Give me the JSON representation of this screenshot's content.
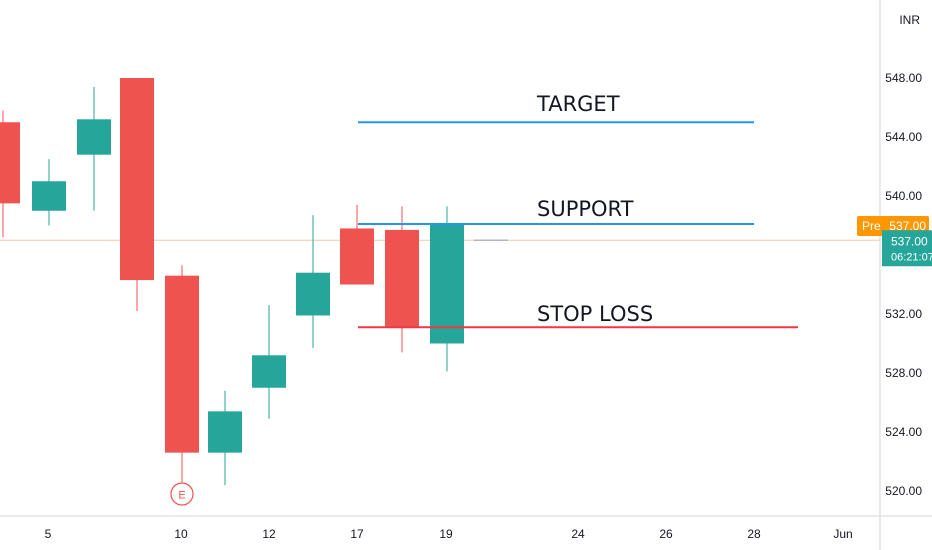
{
  "currency_label": "INR",
  "chart_data": {
    "type": "candlestick",
    "y_ticks": [
      "548.00",
      "544.00",
      "540.00",
      "532.00",
      "528.00",
      "524.00",
      "520.00"
    ],
    "x_ticks": [
      "5",
      "10",
      "12",
      "17",
      "19",
      "24",
      "26",
      "28",
      "Jun"
    ],
    "ylim": [
      518.5,
      550.5
    ],
    "candles": [
      {
        "open": 545.0,
        "close": 539.5,
        "high": 545.8,
        "low": 537.2,
        "color": "down"
      },
      {
        "open": 539.0,
        "close": 541.0,
        "high": 542.5,
        "low": 538.0,
        "color": "up"
      },
      {
        "open": 542.8,
        "close": 545.2,
        "high": 547.4,
        "low": 539.0,
        "color": "up"
      },
      {
        "open": 548.0,
        "close": 534.3,
        "high": 548.0,
        "low": 532.2,
        "color": "down"
      },
      {
        "open": 534.6,
        "close": 522.6,
        "high": 535.3,
        "low": 520.6,
        "color": "down"
      },
      {
        "open": 522.6,
        "close": 525.4,
        "high": 526.8,
        "low": 520.4,
        "color": "up"
      },
      {
        "open": 527.0,
        "close": 529.2,
        "high": 532.6,
        "low": 524.9,
        "color": "up"
      },
      {
        "open": 531.9,
        "close": 534.8,
        "high": 538.7,
        "low": 529.7,
        "color": "up"
      },
      {
        "open": 537.8,
        "close": 534.0,
        "high": 539.4,
        "low": 534.0,
        "color": "down"
      },
      {
        "open": 537.7,
        "close": 531.1,
        "high": 539.3,
        "low": 529.4,
        "color": "down"
      },
      {
        "open": 530.0,
        "close": 538.1,
        "high": 539.3,
        "low": 528.1,
        "color": "up"
      }
    ],
    "annotations": [
      {
        "label": "TARGET",
        "value": 545.0,
        "color": "#2196f3"
      },
      {
        "label": "SUPPORT",
        "value": 538.1,
        "color": "#2196f3"
      },
      {
        "label": "STOP LOSS",
        "value": 531.1,
        "color": "#f23645"
      }
    ],
    "earnings_marker": "E",
    "price_line": {
      "value": 537.0
    },
    "premarket": {
      "label": "Pre",
      "value": "537.00"
    },
    "last_price": {
      "value": "537.00",
      "countdown": "06:21:07"
    },
    "colors": {
      "up": "#26a69a",
      "down": "#ef5350",
      "pre": "#ff9800",
      "price_line": "#f8c9a8",
      "axis_text": "#131722"
    }
  }
}
